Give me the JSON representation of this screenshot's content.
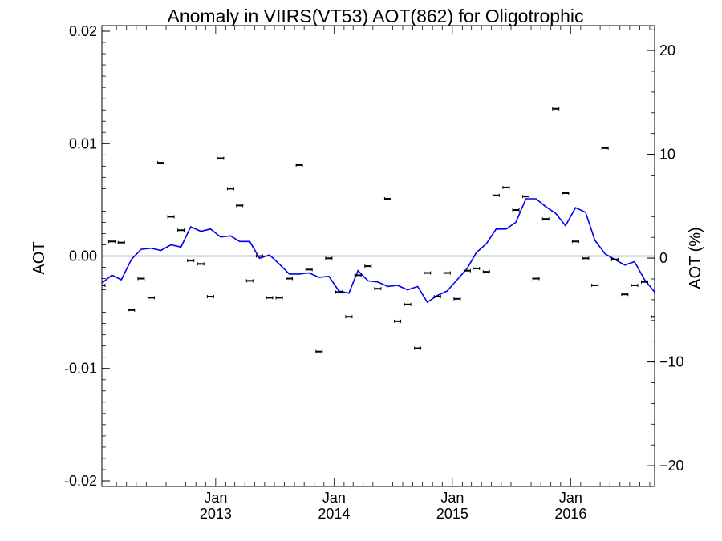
{
  "chart_data": {
    "type": "line",
    "title": "Anomaly in VIIRS(VT53) AOT(862) for Oligotrophic",
    "ylabel": "AOT",
    "ylabel_right": "AOT (%)",
    "xlabel": "",
    "ylim": [
      -0.0205,
      0.0205
    ],
    "ylim_right": [
      -22.0,
      22.4
    ],
    "xlim": [
      "2012-01-16",
      "2016-09-16"
    ],
    "y_ticks": [
      "0.02",
      "0.01",
      "0.00",
      "-0.01",
      "-0.02"
    ],
    "y_tick_values": [
      0.02,
      0.01,
      0.0,
      -0.01,
      -0.02
    ],
    "y_right_ticks": [
      "20",
      "10",
      "0",
      "−10",
      "−20"
    ],
    "y_right_tick_values": [
      20,
      10,
      0,
      -10,
      -20
    ],
    "x_ticks": [
      {
        "month": "Jan",
        "year": "2013",
        "date": "2013-01-01"
      },
      {
        "month": "Jan",
        "year": "2014",
        "date": "2014-01-01"
      },
      {
        "month": "Jan",
        "year": "2015",
        "date": "2015-01-01"
      },
      {
        "month": "Jan",
        "year": "2016",
        "date": "2016-01-01"
      }
    ],
    "zero_line": true,
    "grid": false,
    "line_color": "#0000ee",
    "point_color": "#000000",
    "series": [
      {
        "type": "scatter",
        "x": [
          "2012-01",
          "2012-02",
          "2012-03",
          "2012-04",
          "2012-05",
          "2012-06",
          "2012-07",
          "2012-08",
          "2012-09",
          "2012-10",
          "2012-11",
          "2012-12",
          "2013-01",
          "2013-02",
          "2013-03",
          "2013-04",
          "2013-05",
          "2013-06",
          "2013-07",
          "2013-08",
          "2013-09",
          "2013-10",
          "2013-11",
          "2013-12",
          "2014-01",
          "2014-02",
          "2014-03",
          "2014-04",
          "2014-05",
          "2014-06",
          "2014-07",
          "2014-08",
          "2014-09",
          "2014-10",
          "2014-11",
          "2014-12",
          "2015-01",
          "2015-02",
          "2015-03",
          "2015-04",
          "2015-05",
          "2015-06",
          "2015-07",
          "2015-08",
          "2015-09",
          "2015-10",
          "2015-11",
          "2015-12",
          "2016-01",
          "2016-02",
          "2016-03",
          "2016-04",
          "2016-05",
          "2016-06",
          "2016-07",
          "2016-08",
          "2016-09"
        ],
        "values": [
          -0.0026,
          0.0013,
          0.0012,
          -0.0048,
          -0.002,
          -0.0037,
          0.0083,
          0.0035,
          0.0023,
          -0.0004,
          -0.0007,
          -0.0036,
          0.0087,
          0.006,
          0.0045,
          -0.0022,
          0.0,
          -0.0037,
          -0.0037,
          -0.002,
          0.0081,
          -0.0012,
          -0.0085,
          -0.0002,
          -0.0032,
          -0.0054,
          -0.0017,
          -0.0009,
          -0.0029,
          0.0051,
          -0.0058,
          -0.0043,
          -0.0082,
          -0.0015,
          -0.0036,
          -0.0015,
          -0.0038,
          -0.0013,
          -0.0011,
          -0.0014,
          0.0054,
          0.0061,
          0.0041,
          0.0053,
          -0.002,
          0.0033,
          0.0131,
          0.0056,
          0.0013,
          -0.0002,
          -0.0026,
          0.0096,
          -0.0003,
          -0.0034,
          -0.0026,
          -0.0023,
          -0.0054
        ]
      },
      {
        "type": "line",
        "x": [
          "2012-01",
          "2012-02",
          "2012-03",
          "2012-04",
          "2012-05",
          "2012-06",
          "2012-07",
          "2012-08",
          "2012-09",
          "2012-10",
          "2012-11",
          "2012-12",
          "2013-01",
          "2013-02",
          "2013-03",
          "2013-04",
          "2013-05",
          "2013-06",
          "2013-07",
          "2013-08",
          "2013-09",
          "2013-10",
          "2013-11",
          "2013-12",
          "2014-01",
          "2014-02",
          "2014-03",
          "2014-04",
          "2014-05",
          "2014-06",
          "2014-07",
          "2014-08",
          "2014-09",
          "2014-10",
          "2014-11",
          "2014-12",
          "2015-01",
          "2015-02",
          "2015-03",
          "2015-04",
          "2015-05",
          "2015-06",
          "2015-07",
          "2015-08",
          "2015-09",
          "2015-10",
          "2015-11",
          "2015-12",
          "2016-01",
          "2016-02",
          "2016-03",
          "2016-04",
          "2016-05",
          "2016-06",
          "2016-07",
          "2016-08",
          "2016-09"
        ],
        "values": [
          -0.0024,
          -0.0017,
          -0.0021,
          -0.0003,
          0.0006,
          0.0007,
          0.0005,
          0.001,
          0.0008,
          0.0026,
          0.0022,
          0.0024,
          0.0017,
          0.0018,
          0.0013,
          0.0013,
          -0.0002,
          0.0001,
          -0.0007,
          -0.0016,
          -0.0016,
          -0.0015,
          -0.0019,
          -0.0018,
          -0.0031,
          -0.0033,
          -0.0013,
          -0.0022,
          -0.0023,
          -0.0027,
          -0.0026,
          -0.003,
          -0.0027,
          -0.0041,
          -0.0035,
          -0.0031,
          -0.0021,
          -0.0011,
          0.0003,
          0.0011,
          0.0024,
          0.0024,
          0.003,
          0.0051,
          0.0051,
          0.0044,
          0.0038,
          0.0027,
          0.0043,
          0.0039,
          0.0014,
          0.0002,
          -0.0003,
          -0.0008,
          -0.0005,
          -0.0021,
          -0.0032
        ]
      }
    ]
  }
}
